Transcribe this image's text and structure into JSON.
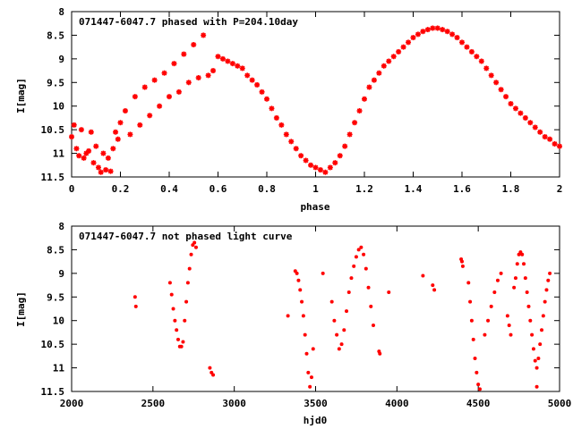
{
  "chart_data": [
    {
      "type": "scatter",
      "title": "071447-6047.7 phased with P=204.10day",
      "xlabel": "phase",
      "ylabel": "I[mag]",
      "xlim": [
        0,
        2
      ],
      "ylim": [
        11.5,
        8
      ],
      "y_inverted": true,
      "xticks": [
        0,
        0.2,
        0.4,
        0.6,
        0.8,
        1,
        1.2,
        1.4,
        1.6,
        1.8,
        2
      ],
      "xtick_labels": [
        "0",
        "0.2",
        "0.4",
        "0.6",
        "0.8",
        "1",
        "1.2",
        "1.4",
        "1.6",
        "1.8",
        "2"
      ],
      "yticks": [
        8,
        8.5,
        9,
        9.5,
        10,
        10.5,
        11,
        11.5
      ],
      "ytick_labels": [
        "8",
        "8.5",
        "9",
        "9.5",
        "10",
        "10.5",
        "11",
        "11.5"
      ],
      "grid": false,
      "marker_color": "#ff0000",
      "series": [
        {
          "values": [
            [
              0.0,
              10.65
            ],
            [
              0.01,
              10.4
            ],
            [
              0.02,
              10.9
            ],
            [
              0.03,
              11.05
            ],
            [
              0.04,
              10.5
            ],
            [
              0.05,
              11.1
            ],
            [
              0.06,
              11.0
            ],
            [
              0.07,
              10.95
            ],
            [
              0.08,
              10.55
            ],
            [
              0.09,
              11.2
            ],
            [
              0.1,
              10.85
            ],
            [
              0.11,
              11.3
            ],
            [
              0.12,
              11.4
            ],
            [
              0.13,
              11.0
            ],
            [
              0.14,
              11.35
            ],
            [
              0.15,
              11.1
            ],
            [
              0.16,
              11.38
            ],
            [
              0.17,
              10.9
            ],
            [
              0.18,
              10.55
            ],
            [
              0.19,
              10.7
            ],
            [
              0.2,
              10.35
            ],
            [
              0.22,
              10.1
            ],
            [
              0.24,
              10.6
            ],
            [
              0.26,
              9.8
            ],
            [
              0.28,
              10.4
            ],
            [
              0.3,
              9.6
            ],
            [
              0.32,
              10.2
            ],
            [
              0.34,
              9.45
            ],
            [
              0.36,
              10.0
            ],
            [
              0.38,
              9.3
            ],
            [
              0.4,
              9.8
            ],
            [
              0.42,
              9.1
            ],
            [
              0.44,
              9.7
            ],
            [
              0.46,
              8.9
            ],
            [
              0.48,
              9.5
            ],
            [
              0.5,
              8.7
            ],
            [
              0.52,
              9.4
            ],
            [
              0.54,
              8.5
            ],
            [
              0.56,
              9.35
            ],
            [
              0.58,
              9.25
            ],
            [
              0.6,
              8.95
            ],
            [
              0.62,
              9.0
            ],
            [
              0.64,
              9.05
            ],
            [
              0.66,
              9.1
            ],
            [
              0.68,
              9.15
            ],
            [
              0.7,
              9.2
            ],
            [
              0.72,
              9.35
            ],
            [
              0.74,
              9.45
            ],
            [
              0.76,
              9.55
            ],
            [
              0.78,
              9.7
            ],
            [
              0.8,
              9.85
            ],
            [
              0.82,
              10.05
            ],
            [
              0.84,
              10.25
            ],
            [
              0.86,
              10.4
            ],
            [
              0.88,
              10.6
            ],
            [
              0.9,
              10.75
            ],
            [
              0.92,
              10.9
            ],
            [
              0.94,
              11.05
            ],
            [
              0.96,
              11.15
            ],
            [
              0.98,
              11.25
            ],
            [
              1.0,
              11.3
            ],
            [
              1.02,
              11.35
            ],
            [
              1.04,
              11.4
            ],
            [
              1.06,
              11.3
            ],
            [
              1.08,
              11.2
            ],
            [
              1.1,
              11.05
            ],
            [
              1.12,
              10.85
            ],
            [
              1.14,
              10.6
            ],
            [
              1.16,
              10.35
            ],
            [
              1.18,
              10.1
            ],
            [
              1.2,
              9.85
            ],
            [
              1.22,
              9.6
            ],
            [
              1.24,
              9.45
            ],
            [
              1.26,
              9.3
            ],
            [
              1.28,
              9.15
            ],
            [
              1.3,
              9.05
            ],
            [
              1.32,
              8.95
            ],
            [
              1.34,
              8.85
            ],
            [
              1.36,
              8.75
            ],
            [
              1.38,
              8.65
            ],
            [
              1.4,
              8.55
            ],
            [
              1.42,
              8.48
            ],
            [
              1.44,
              8.42
            ],
            [
              1.46,
              8.38
            ],
            [
              1.48,
              8.35
            ],
            [
              1.5,
              8.35
            ],
            [
              1.52,
              8.38
            ],
            [
              1.54,
              8.42
            ],
            [
              1.56,
              8.48
            ],
            [
              1.58,
              8.55
            ],
            [
              1.6,
              8.65
            ],
            [
              1.62,
              8.75
            ],
            [
              1.64,
              8.85
            ],
            [
              1.66,
              8.95
            ],
            [
              1.68,
              9.05
            ],
            [
              1.7,
              9.2
            ],
            [
              1.72,
              9.35
            ],
            [
              1.74,
              9.5
            ],
            [
              1.76,
              9.65
            ],
            [
              1.78,
              9.8
            ],
            [
              1.8,
              9.95
            ],
            [
              1.82,
              10.05
            ],
            [
              1.84,
              10.15
            ],
            [
              1.86,
              10.25
            ],
            [
              1.88,
              10.35
            ],
            [
              1.9,
              10.45
            ],
            [
              1.92,
              10.55
            ],
            [
              1.94,
              10.65
            ],
            [
              1.96,
              10.7
            ],
            [
              1.98,
              10.8
            ],
            [
              2.0,
              10.85
            ]
          ]
        }
      ]
    },
    {
      "type": "scatter",
      "title": "071447-6047.7 not phased light curve",
      "xlabel": "hjd0",
      "ylabel": "I[mag]",
      "xlim": [
        2000,
        5000
      ],
      "ylim": [
        11.5,
        8
      ],
      "y_inverted": true,
      "xticks": [
        2000,
        2500,
        3000,
        3500,
        4000,
        4500,
        5000
      ],
      "xtick_labels": [
        "2000",
        "2500",
        "3000",
        "3500",
        "4000",
        "4500",
        "5000"
      ],
      "yticks": [
        8,
        8.5,
        9,
        9.5,
        10,
        10.5,
        11,
        11.5
      ],
      "ytick_labels": [
        "8",
        "8.5",
        "9",
        "9.5",
        "10",
        "10.5",
        "11",
        "11.5"
      ],
      "grid": false,
      "marker_color": "#ff0000",
      "series": [
        {
          "values": [
            [
              2390,
              9.5
            ],
            [
              2395,
              9.7
            ],
            [
              2605,
              9.2
            ],
            [
              2615,
              9.45
            ],
            [
              2625,
              9.75
            ],
            [
              2635,
              10.0
            ],
            [
              2645,
              10.2
            ],
            [
              2655,
              10.4
            ],
            [
              2665,
              10.55
            ],
            [
              2675,
              10.55
            ],
            [
              2685,
              10.45
            ],
            [
              2695,
              10.0
            ],
            [
              2705,
              9.6
            ],
            [
              2715,
              9.2
            ],
            [
              2725,
              8.9
            ],
            [
              2735,
              8.6
            ],
            [
              2745,
              8.4
            ],
            [
              2755,
              8.35
            ],
            [
              2765,
              8.45
            ],
            [
              2850,
              11.0
            ],
            [
              2860,
              11.1
            ],
            [
              2870,
              11.15
            ],
            [
              3330,
              9.9
            ],
            [
              3375,
              8.95
            ],
            [
              3385,
              9.0
            ],
            [
              3395,
              9.15
            ],
            [
              3405,
              9.35
            ],
            [
              3415,
              9.6
            ],
            [
              3425,
              9.9
            ],
            [
              3435,
              10.3
            ],
            [
              3445,
              10.7
            ],
            [
              3455,
              11.1
            ],
            [
              3465,
              11.4
            ],
            [
              3475,
              11.2
            ],
            [
              3485,
              10.6
            ],
            [
              3545,
              9.0
            ],
            [
              3600,
              9.6
            ],
            [
              3615,
              10.0
            ],
            [
              3630,
              10.3
            ],
            [
              3645,
              10.6
            ],
            [
              3660,
              10.5
            ],
            [
              3675,
              10.2
            ],
            [
              3690,
              9.8
            ],
            [
              3705,
              9.4
            ],
            [
              3720,
              9.1
            ],
            [
              3735,
              8.85
            ],
            [
              3750,
              8.65
            ],
            [
              3765,
              8.5
            ],
            [
              3780,
              8.45
            ],
            [
              3795,
              8.6
            ],
            [
              3810,
              8.9
            ],
            [
              3825,
              9.3
            ],
            [
              3840,
              9.7
            ],
            [
              3855,
              10.1
            ],
            [
              3890,
              10.65
            ],
            [
              3895,
              10.7
            ],
            [
              3950,
              9.4
            ],
            [
              4160,
              9.05
            ],
            [
              4220,
              9.25
            ],
            [
              4230,
              9.35
            ],
            [
              4395,
              8.7
            ],
            [
              4400,
              8.75
            ],
            [
              4405,
              8.85
            ],
            [
              4440,
              9.2
            ],
            [
              4450,
              9.6
            ],
            [
              4460,
              10.0
            ],
            [
              4470,
              10.4
            ],
            [
              4480,
              10.8
            ],
            [
              4490,
              11.1
            ],
            [
              4500,
              11.35
            ],
            [
              4510,
              11.45
            ],
            [
              4540,
              10.3
            ],
            [
              4560,
              10.0
            ],
            [
              4580,
              9.7
            ],
            [
              4600,
              9.4
            ],
            [
              4620,
              9.15
            ],
            [
              4640,
              9.0
            ],
            [
              4680,
              9.9
            ],
            [
              4690,
              10.1
            ],
            [
              4700,
              10.3
            ],
            [
              4720,
              9.3
            ],
            [
              4730,
              9.1
            ],
            [
              4740,
              8.8
            ],
            [
              4750,
              8.6
            ],
            [
              4760,
              8.55
            ],
            [
              4770,
              8.6
            ],
            [
              4780,
              8.8
            ],
            [
              4790,
              9.1
            ],
            [
              4800,
              9.4
            ],
            [
              4810,
              9.7
            ],
            [
              4820,
              10.0
            ],
            [
              4830,
              10.3
            ],
            [
              4840,
              10.6
            ],
            [
              4850,
              10.85
            ],
            [
              4860,
              11.0
            ],
            [
              4870,
              10.8
            ],
            [
              4880,
              10.5
            ],
            [
              4890,
              10.2
            ],
            [
              4900,
              9.9
            ],
            [
              4910,
              9.6
            ],
            [
              4920,
              9.35
            ],
            [
              4930,
              9.15
            ],
            [
              4940,
              9.0
            ],
            [
              4860,
              11.4
            ]
          ]
        }
      ]
    }
  ]
}
